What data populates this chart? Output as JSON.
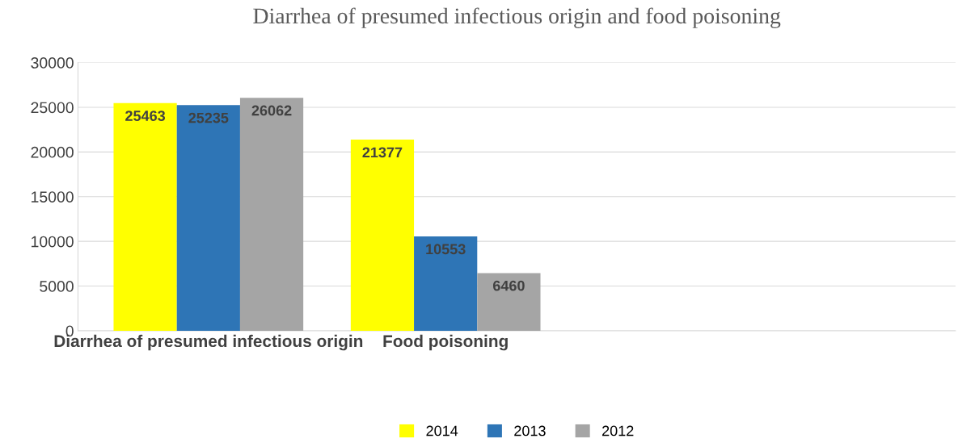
{
  "chart_data": {
    "type": "bar",
    "title": "Diarrhea of presumed infectious origin and food poisoning",
    "categories": [
      "Diarrhea of presumed infectious origin",
      "Food poisoning"
    ],
    "series": [
      {
        "name": "2014",
        "color": "#ffff00",
        "values": [
          25463,
          21377
        ]
      },
      {
        "name": "2013",
        "color": "#2e75b6",
        "values": [
          25235,
          10553
        ]
      },
      {
        "name": "2012",
        "color": "#a5a5a5",
        "values": [
          26062,
          6460
        ]
      }
    ],
    "ylim": [
      0,
      30000
    ],
    "yticks": [
      0,
      5000,
      10000,
      15000,
      20000,
      25000,
      30000
    ],
    "grid": "y",
    "legend": "bottom",
    "data_labels": true
  }
}
